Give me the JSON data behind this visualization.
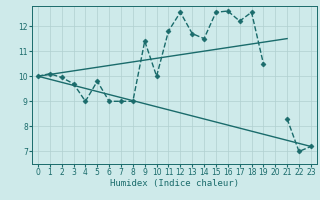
{
  "xlabel": "Humidex (Indice chaleur)",
  "ylabel": "",
  "background_color": "#ceeaea",
  "grid_color": "#b0d0d0",
  "line_color": "#1a6b6b",
  "x_ticks": [
    0,
    1,
    2,
    3,
    4,
    5,
    6,
    7,
    8,
    9,
    10,
    11,
    12,
    13,
    14,
    15,
    16,
    17,
    18,
    19,
    20,
    21,
    22,
    23
  ],
  "y_ticks": [
    7,
    8,
    9,
    10,
    11,
    12
  ],
  "ylim": [
    6.5,
    12.8
  ],
  "xlim": [
    -0.5,
    23.5
  ],
  "series": [
    {
      "x": [
        0,
        1,
        2,
        3,
        4,
        5,
        6,
        7,
        8,
        9,
        10,
        11,
        12,
        13,
        14,
        15,
        16,
        17,
        18,
        19,
        20,
        21,
        22,
        23
      ],
      "y": [
        10.0,
        10.1,
        9.95,
        9.7,
        9.0,
        9.8,
        9.0,
        9.0,
        9.0,
        11.4,
        10.0,
        11.8,
        12.55,
        11.7,
        11.5,
        12.55,
        12.6,
        12.2,
        12.55,
        10.5,
        null,
        8.3,
        7.0,
        7.2
      ],
      "marker": "D",
      "markersize": 2.5,
      "linewidth": 1.0,
      "linestyle": "--"
    },
    {
      "x": [
        0,
        21
      ],
      "y": [
        10.0,
        11.5
      ],
      "marker": null,
      "markersize": 0,
      "linewidth": 1.0,
      "linestyle": "-"
    },
    {
      "x": [
        0,
        23
      ],
      "y": [
        10.0,
        7.2
      ],
      "marker": null,
      "markersize": 0,
      "linewidth": 1.0,
      "linestyle": "-"
    }
  ]
}
